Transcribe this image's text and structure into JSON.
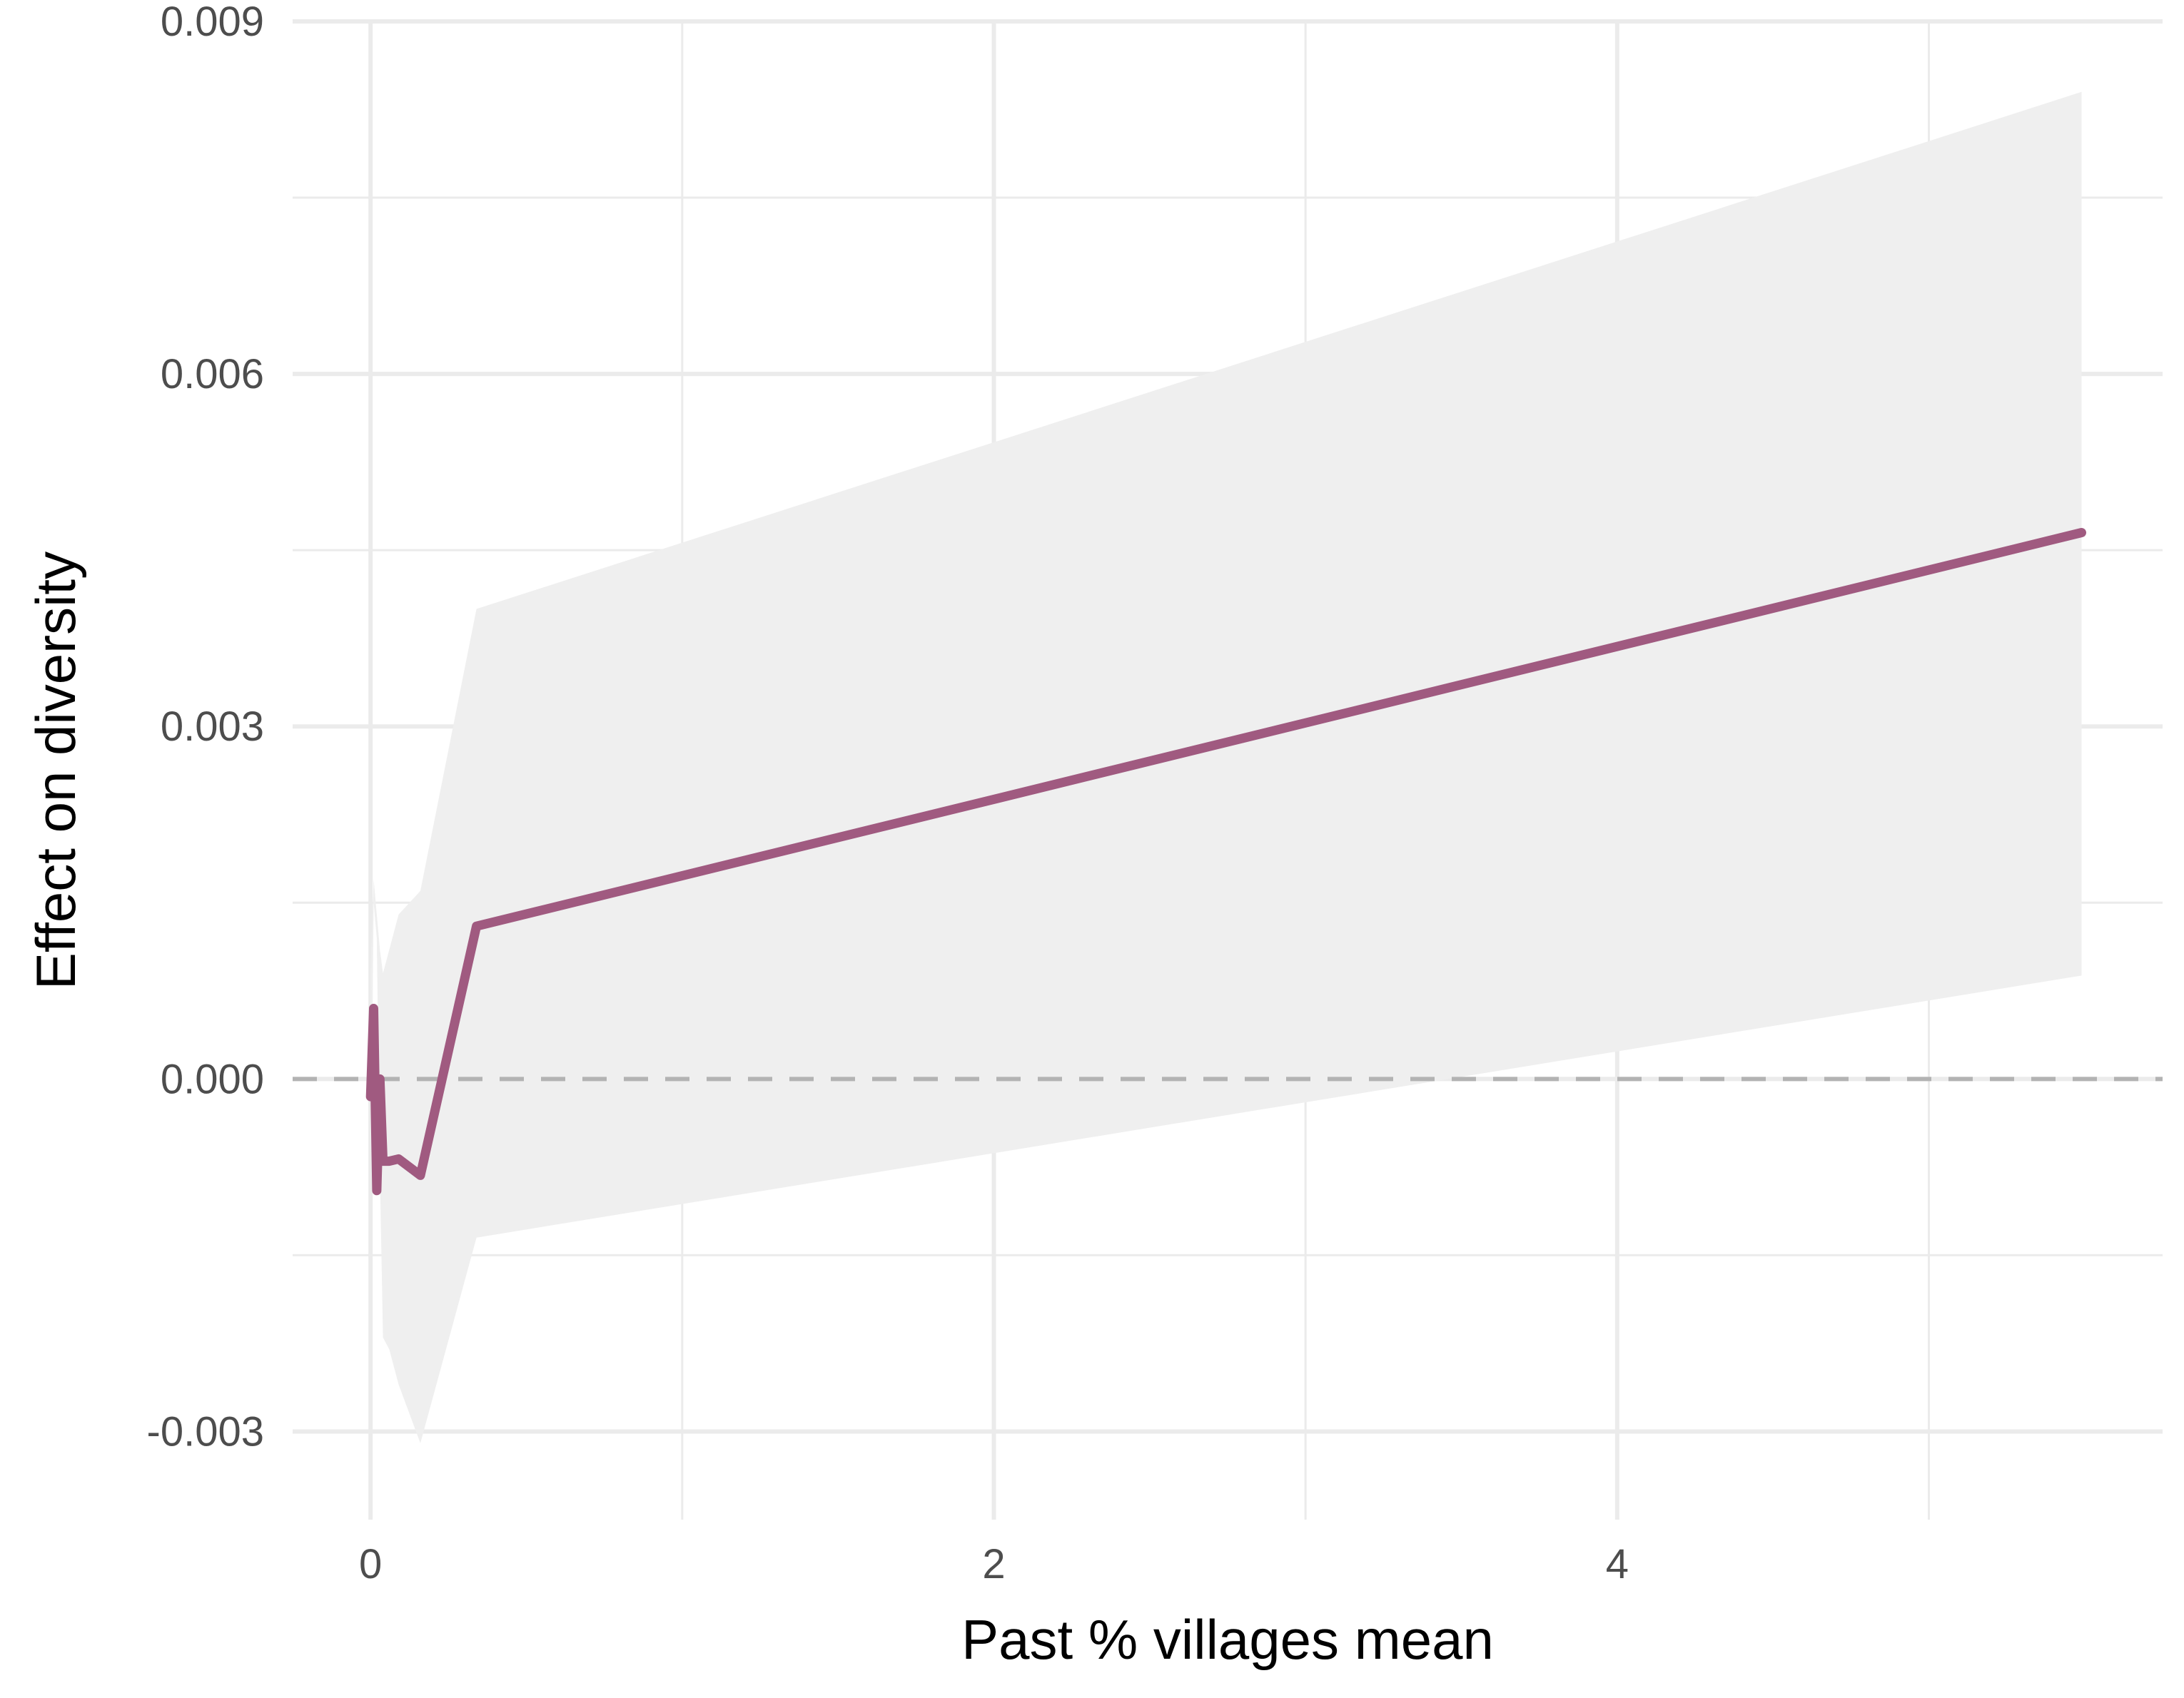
{
  "chart_data": {
    "type": "line",
    "title": "",
    "xlabel": "Past % villages mean",
    "ylabel": "Effect on diversity",
    "xlim": [
      -0.25,
      5.75
    ],
    "ylim": [
      -0.00375,
      0.009
    ],
    "x_ticks": [
      0,
      2,
      4
    ],
    "x_tick_labels": [
      "0",
      "2",
      "4"
    ],
    "y_ticks": [
      -0.003,
      0.0,
      0.003,
      0.006,
      0.009
    ],
    "y_tick_labels": [
      "-0.003",
      "0.000",
      "0.003",
      "0.006",
      "0.009"
    ],
    "grid": true,
    "reference_line": {
      "y": 0.0,
      "style": "dashed",
      "color": "#b3b3b3"
    },
    "series": [
      {
        "color": "#a05a80",
        "x": [
          0.0,
          0.01,
          0.02,
          0.03,
          0.04,
          0.06,
          0.09,
          0.16,
          0.34,
          5.49
        ],
        "y": [
          -0.00015,
          0.0006,
          -0.00095,
          0.0,
          -0.0007,
          -0.0007,
          -0.00068,
          -0.00082,
          0.0013,
          0.00465
        ],
        "ci_lower": [
          -0.001,
          0.0015,
          0.0012,
          -0.0008,
          -0.0022,
          -0.0023,
          -0.0026,
          -0.0031,
          -0.00135,
          0.00088
        ],
        "ci_upper": [
          0.0009,
          0.0017,
          0.0014,
          0.0011,
          0.0009,
          0.0011,
          0.0014,
          0.0016,
          0.004,
          0.0084
        ],
        "ci_color": "#efefef"
      }
    ]
  }
}
